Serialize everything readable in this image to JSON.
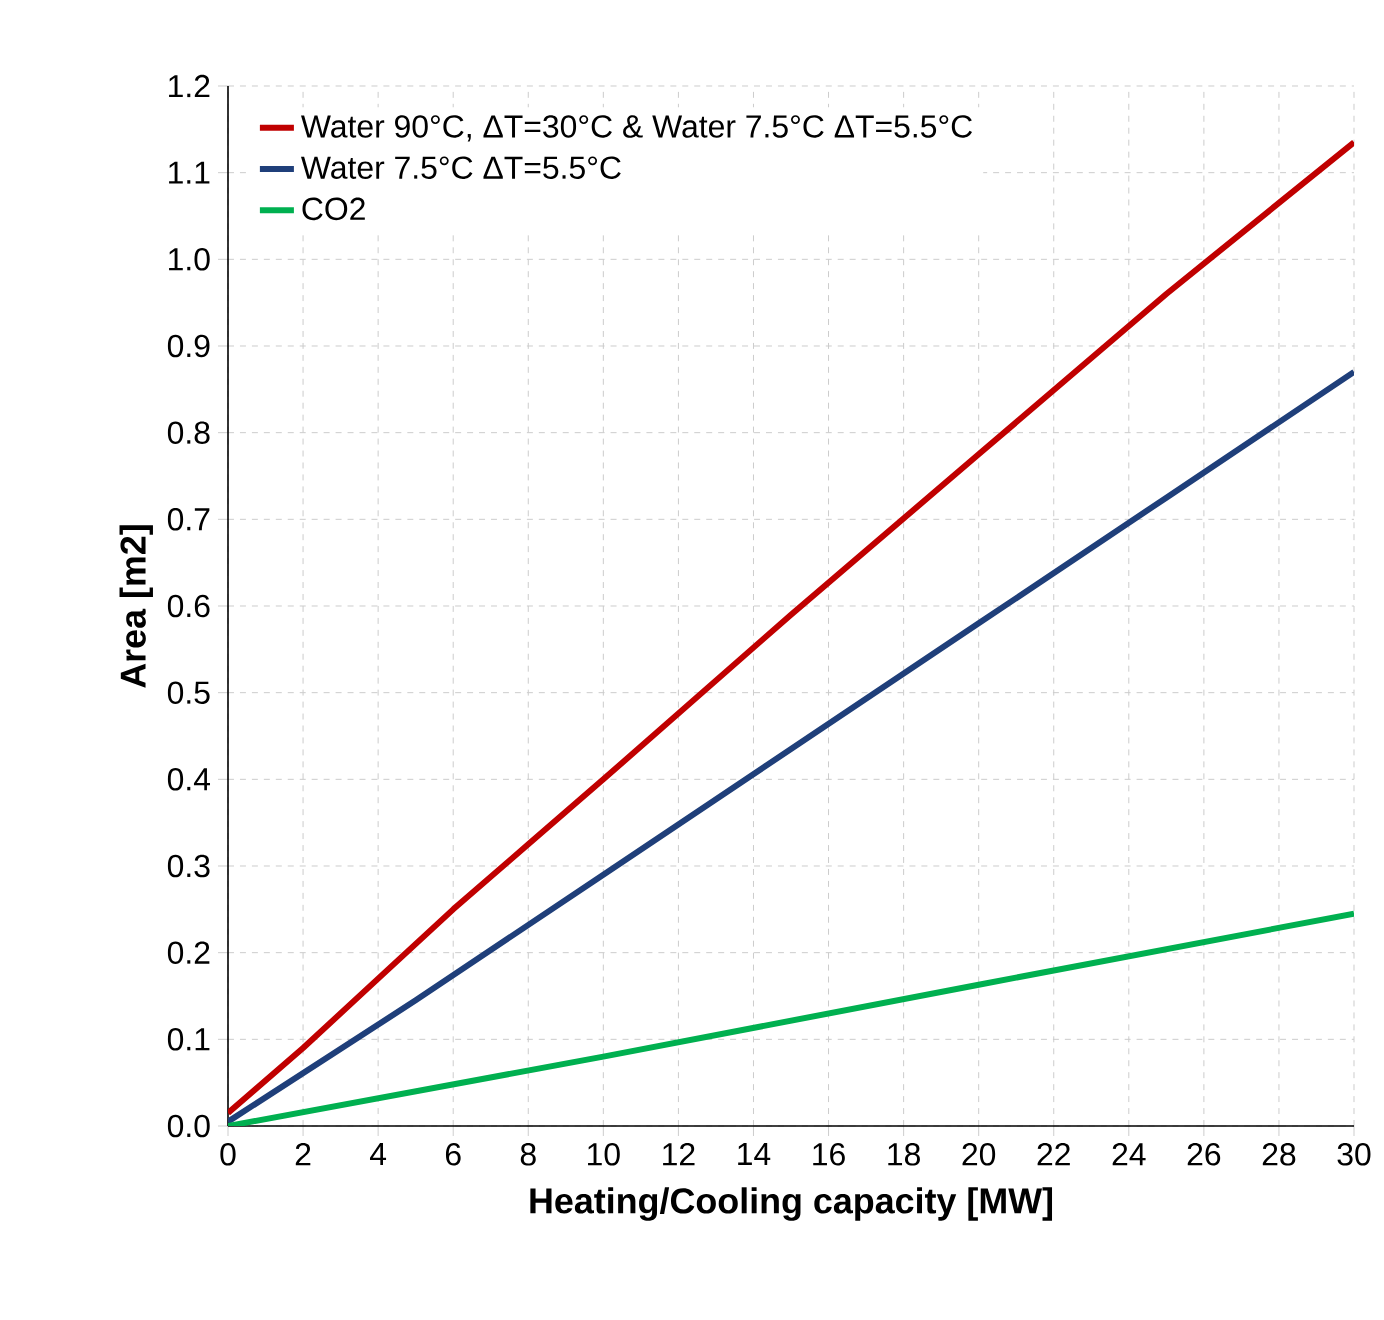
{
  "chart_data": {
    "type": "line",
    "xlabel": "Heating/Cooling capacity [MW]",
    "ylabel": "Area [m2]",
    "xlim": [
      0,
      30
    ],
    "ylim": [
      0,
      1.2
    ],
    "xticks": [
      0,
      2,
      4,
      6,
      8,
      10,
      12,
      14,
      16,
      18,
      20,
      22,
      24,
      26,
      28,
      30
    ],
    "yticks": [
      {
        "value": 0,
        "label": "0.0"
      },
      {
        "value": 0.1,
        "label": "0.1"
      },
      {
        "value": 0.2,
        "label": "0.2"
      },
      {
        "value": 0.3,
        "label": "0.3"
      },
      {
        "value": 0.4,
        "label": "0.4"
      },
      {
        "value": 0.5,
        "label": "0.5"
      },
      {
        "value": 0.6,
        "label": "0.6"
      },
      {
        "value": 0.7,
        "label": "0.7"
      },
      {
        "value": 0.8,
        "label": "0.8"
      },
      {
        "value": 0.9,
        "label": "0.9"
      },
      {
        "value": 1.0,
        "label": "1.0"
      },
      {
        "value": 1.1,
        "label": "1.1"
      },
      {
        "value": 1.2,
        "label": "1.2"
      }
    ],
    "grid": true,
    "legend": "top left",
    "marker": "none",
    "line_style": "solid",
    "series": [
      {
        "name": "Water 90°C,  ΔT=30°C & Water 7.5°C ΔT=5.5°C",
        "color": "#c00000",
        "x": [
          0,
          2,
          4,
          6,
          8,
          10,
          15,
          20,
          25,
          30
        ],
        "values": [
          0.015,
          0.09,
          0.17,
          0.25,
          0.325,
          0.4,
          0.59,
          0.775,
          0.96,
          1.135
        ]
      },
      {
        "name": "Water 7.5°C ΔT=5.5°C",
        "color": "#1f3f7a",
        "x": [
          0,
          5,
          10,
          15,
          20,
          25,
          30
        ],
        "values": [
          0.005,
          0.145,
          0.29,
          0.435,
          0.58,
          0.725,
          0.87
        ]
      },
      {
        "name": "CO2",
        "color": "#00b050",
        "x": [
          0,
          10,
          20,
          30
        ],
        "values": [
          0,
          0.08,
          0.163,
          0.245
        ]
      }
    ]
  }
}
